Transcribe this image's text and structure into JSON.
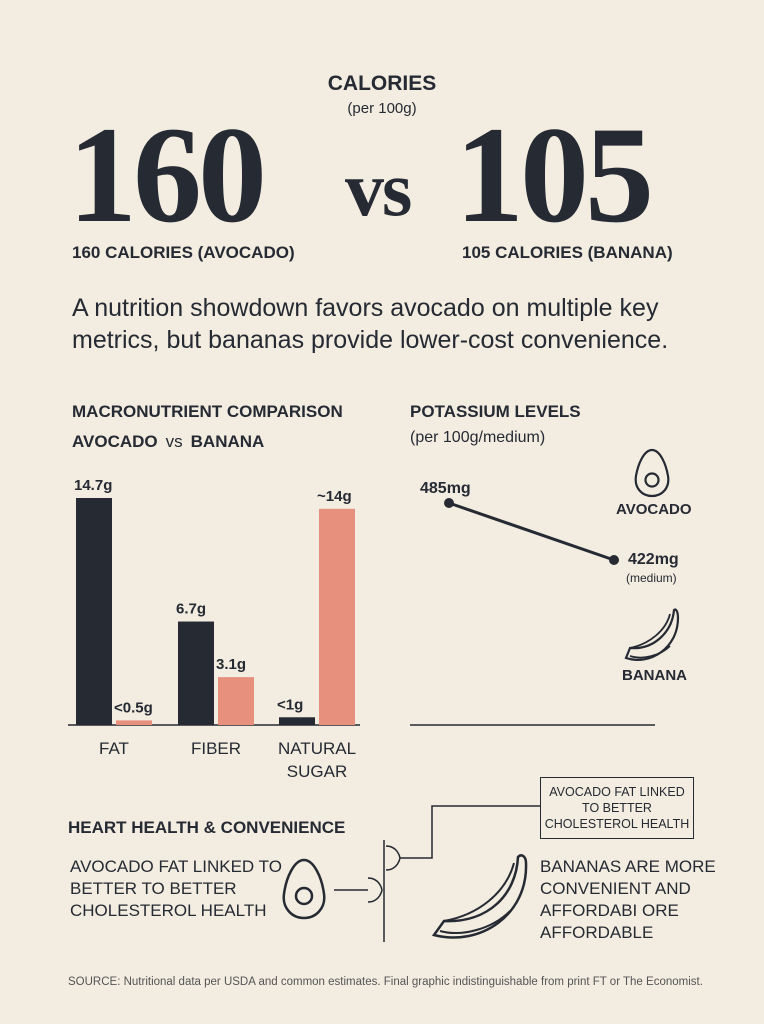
{
  "header": {
    "title": "CALORIES",
    "subtitle": "(per 100g)",
    "avocado_number": "160",
    "vs": "vs",
    "banana_number": "105",
    "avocado_label": "160 CALORIES (AVOCADO)",
    "banana_label": "105 CALORIES (BANANA)"
  },
  "headline": "A nutrition showdown favors avocado on multiple key metrics, but bananas provide lower-cost convenience.",
  "macro": {
    "title": "MACRONUTRIENT COMPARISON",
    "series_a": "AVOCADO",
    "vs": "vs",
    "series_b": "BANANA"
  },
  "potassium": {
    "title": "POTASSIUM LEVELS",
    "subtitle": "(per 100g/medium)",
    "avocado_label": "AVOCADO",
    "banana_label": "BANANA",
    "banana_note": "(medium)"
  },
  "heart": {
    "title": "HEART HEALTH & CONVENIENCE",
    "left_text": "AVOCADO FAT LINKED TO BETTER TO BETTER CHOLESTEROL HEALTH",
    "box_text": "AVOCADO FAT LINKED TO BETTER CHOLESTEROL HEALTH",
    "right_text": "BANANAS ARE MORE CONVENIENT AND AFFORDABI ORE AFFORDABLE"
  },
  "source": "SOURCE: Nutritional data per USDA and common estimates. Final graphic indistinguishable from print FT or The Economist.",
  "colors": {
    "avocado": "#262a33",
    "banana": "#e8907e",
    "background": "#f2ece1"
  },
  "chart_data": [
    {
      "type": "bar",
      "title": "MACRONUTRIENT COMPARISON",
      "categories": [
        "FAT",
        "FIBER",
        "NATURAL SUGAR"
      ],
      "series": [
        {
          "name": "AVOCADO",
          "values": [
            14.7,
            6.7,
            0.5
          ],
          "labels": [
            "14.7g",
            "6.7g",
            "<1g"
          ]
        },
        {
          "name": "BANANA",
          "values": [
            0.3,
            3.1,
            14
          ],
          "labels": [
            "<0.5g",
            "3.1g",
            "~14g"
          ]
        }
      ],
      "ylim": [
        0,
        15
      ]
    },
    {
      "type": "line",
      "title": "POTASSIUM LEVELS",
      "x": [
        "AVOCADO",
        "BANANA"
      ],
      "y": [
        485,
        422
      ],
      "labels": [
        "485mg",
        "422mg"
      ]
    }
  ]
}
